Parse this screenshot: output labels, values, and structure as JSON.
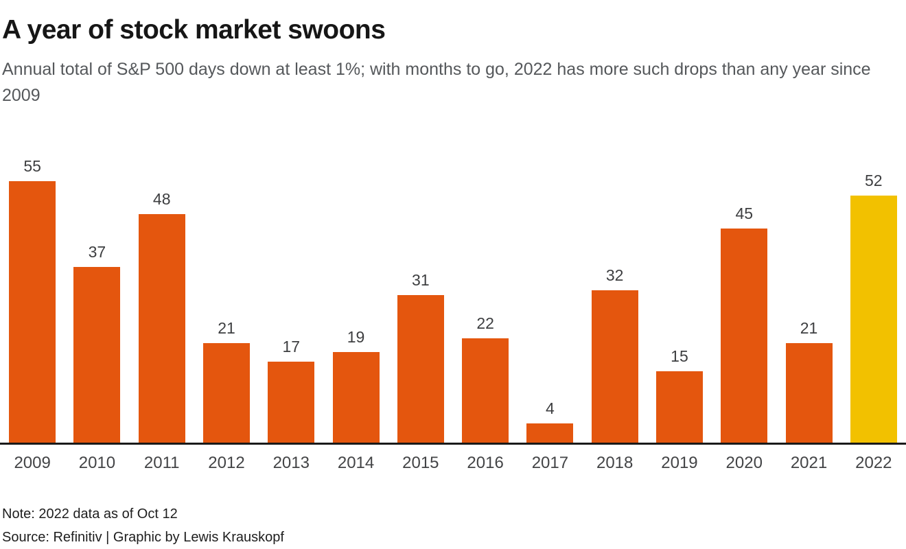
{
  "header": {
    "title": "A year of stock market swoons",
    "subtitle": "Annual total of S&P 500 days down at least 1%; with months to go, 2022 has more such drops than any year since 2009"
  },
  "chart_data": {
    "type": "bar",
    "title": "A year of stock market swoons",
    "subtitle": "Annual total of S&P 500 days down at least 1%; with months to go, 2022 has more such drops than any year since 2009",
    "categories": [
      "2009",
      "2010",
      "2011",
      "2012",
      "2013",
      "2014",
      "2015",
      "2016",
      "2017",
      "2018",
      "2019",
      "2020",
      "2021",
      "2022"
    ],
    "values": [
      55,
      37,
      48,
      21,
      17,
      19,
      31,
      22,
      4,
      32,
      15,
      45,
      21,
      52
    ],
    "highlight_category": "2022",
    "colors": {
      "bar": "#E4560E",
      "highlight": "#F2C100",
      "axis": "#1a1a1a"
    },
    "xlabel": "",
    "ylabel": "",
    "ylim": [
      0,
      55
    ],
    "grid": false,
    "legend": false,
    "value_labels": true
  },
  "footer": {
    "note": "Note: 2022 data as of Oct 12",
    "source": "Source: Refinitiv | Graphic by Lewis Krauskopf"
  }
}
